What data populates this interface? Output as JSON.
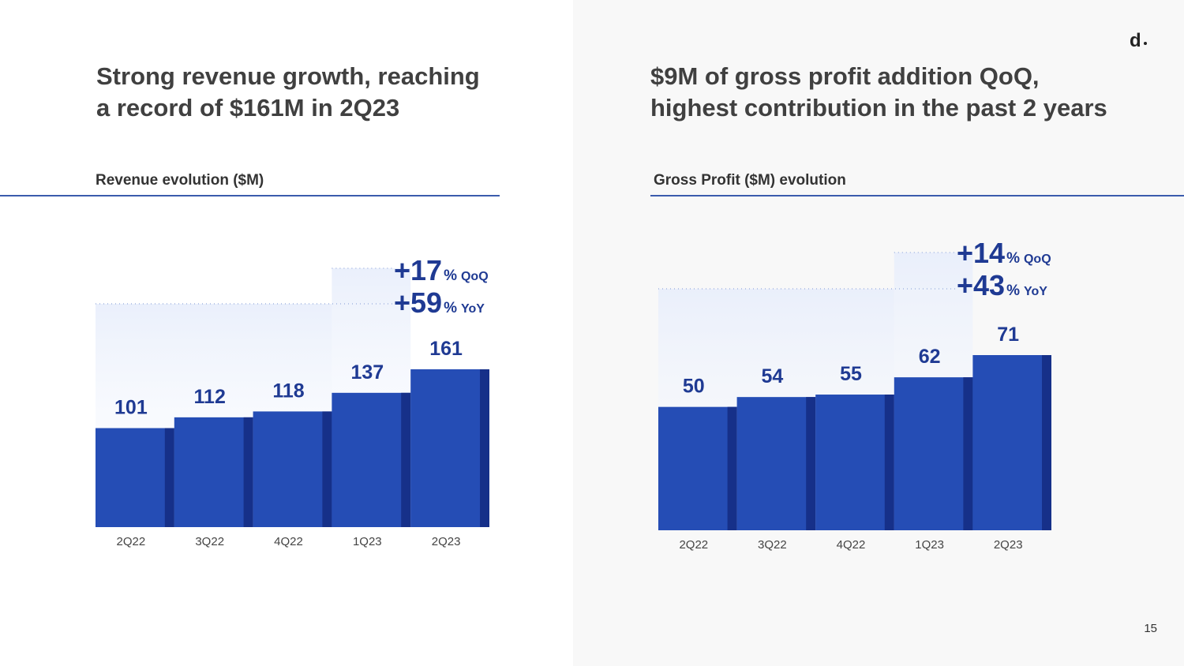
{
  "logo": "d",
  "page_number": "15",
  "left": {
    "headline": "Strong revenue growth, reaching\na record of $161M in 2Q23",
    "subtitle": "Revenue evolution ($M)"
  },
  "right": {
    "headline": "$9M of gross profit addition QoQ,\nhighest contribution in the past 2 years",
    "subtitle": "Gross Profit ($M) evolution"
  },
  "colors": {
    "bar": "#254db5",
    "bar_side": "#163089",
    "value": "#1f3a93",
    "guide": "#b7c6e8"
  },
  "chart_data": [
    {
      "type": "bar",
      "title": "Revenue evolution ($M)",
      "categories": [
        "2Q22",
        "3Q22",
        "4Q22",
        "1Q23",
        "2Q23"
      ],
      "values": [
        101,
        112,
        118,
        137,
        161
      ],
      "value_labels": [
        "101",
        "112",
        "118",
        "137",
        "161"
      ],
      "ylim": [
        0,
        161
      ],
      "growth": [
        {
          "value": "+17",
          "unit": "%",
          "label": "QoQ"
        },
        {
          "value": "+59",
          "unit": "%",
          "label": "YoY"
        }
      ]
    },
    {
      "type": "bar",
      "title": "Gross Profit ($M) evolution",
      "categories": [
        "2Q22",
        "3Q22",
        "4Q22",
        "1Q23",
        "2Q23"
      ],
      "values": [
        50,
        54,
        55,
        62,
        71
      ],
      "value_labels": [
        "50",
        "54",
        "55",
        "62",
        "71"
      ],
      "ylim": [
        0,
        71
      ],
      "growth": [
        {
          "value": "+14",
          "unit": "%",
          "label": "QoQ"
        },
        {
          "value": "+43",
          "unit": "%",
          "label": "YoY"
        }
      ]
    }
  ]
}
